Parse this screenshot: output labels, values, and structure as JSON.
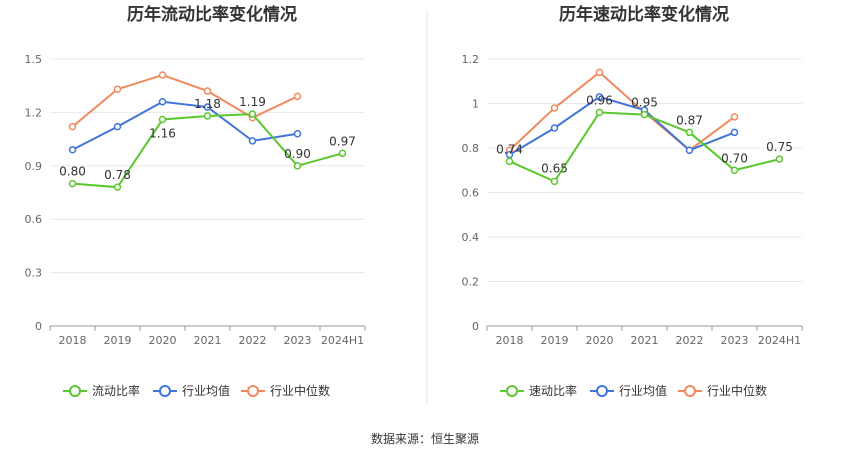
{
  "source_text": "数据来源：恒生聚源",
  "chart_data": [
    {
      "type": "line",
      "title": "历年流动比率变化情况",
      "categories": [
        "2018",
        "2019",
        "2020",
        "2021",
        "2022",
        "2023",
        "2024H1"
      ],
      "ylim": [
        0,
        1.5
      ],
      "yticks": [
        "0",
        "0.3",
        "0.6",
        "0.9",
        "1.2",
        "1.5"
      ],
      "grid": true,
      "legend_position": "bottom",
      "series": [
        {
          "name": "流动比率",
          "color": "#5ac72e",
          "values": [
            0.8,
            0.78,
            1.16,
            1.18,
            1.19,
            0.9,
            0.97
          ],
          "labels": [
            "0.80",
            "0.78",
            "1.16",
            "1.18",
            "1.19",
            "0.90",
            "0.97"
          ]
        },
        {
          "name": "行业均值",
          "color": "#3f74d8",
          "values": [
            0.99,
            1.12,
            1.26,
            1.23,
            1.04,
            1.08,
            null
          ]
        },
        {
          "name": "行业中位数",
          "color": "#f08a5d",
          "values": [
            1.12,
            1.33,
            1.41,
            1.32,
            1.17,
            1.29,
            null
          ]
        }
      ]
    },
    {
      "type": "line",
      "title": "历年速动比率变化情况",
      "categories": [
        "2018",
        "2019",
        "2020",
        "2021",
        "2022",
        "2023",
        "2024H1"
      ],
      "ylim": [
        0,
        1.2
      ],
      "yticks": [
        "0",
        "0.2",
        "0.4",
        "0.6",
        "0.8",
        "1",
        "1.2"
      ],
      "grid": true,
      "legend_position": "bottom",
      "series": [
        {
          "name": "速动比率",
          "color": "#5ac72e",
          "values": [
            0.74,
            0.65,
            0.96,
            0.95,
            0.87,
            0.7,
            0.75
          ],
          "labels": [
            "0.74",
            "0.65",
            "0.96",
            "0.95",
            "0.87",
            "0.70",
            "0.75"
          ]
        },
        {
          "name": "行业均值",
          "color": "#3f74d8",
          "values": [
            0.77,
            0.89,
            1.03,
            0.97,
            0.79,
            0.87,
            null
          ]
        },
        {
          "name": "行业中位数",
          "color": "#f08a5d",
          "values": [
            0.79,
            0.98,
            1.14,
            0.96,
            0.79,
            0.94,
            null
          ]
        }
      ]
    }
  ]
}
